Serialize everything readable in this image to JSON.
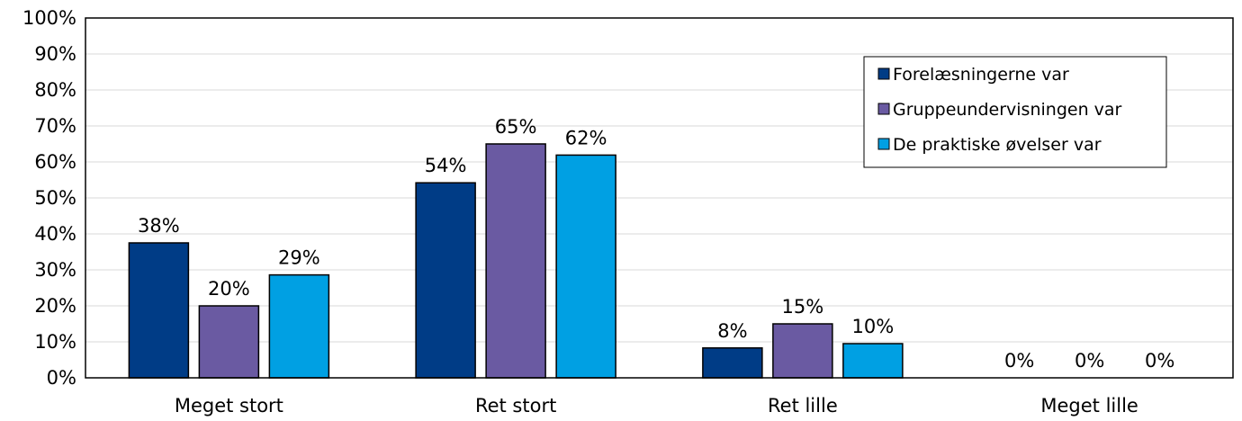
{
  "chart_data": {
    "type": "bar",
    "categories": [
      "Meget stort",
      "Ret stort",
      "Ret lille",
      "Meget lille"
    ],
    "series": [
      {
        "name": "Forelæsningerne var",
        "color": "#003c86",
        "values": [
          37.5,
          54.2,
          8.3,
          0
        ],
        "labels": [
          "38%",
          "54%",
          "8%",
          "0%"
        ]
      },
      {
        "name": "Gruppeundervisningen var",
        "color": "#6a5aa2",
        "values": [
          20,
          65,
          15,
          0
        ],
        "labels": [
          "20%",
          "65%",
          "15%",
          "0%"
        ]
      },
      {
        "name": "De praktiske øvelser var",
        "color": "#00a0e3",
        "values": [
          28.6,
          61.9,
          9.5,
          0
        ],
        "labels": [
          "29%",
          "62%",
          "10%",
          "0%"
        ]
      }
    ],
    "ylim": [
      0,
      100
    ],
    "yticks": [
      "0%",
      "10%",
      "20%",
      "30%",
      "40%",
      "50%",
      "60%",
      "70%",
      "80%",
      "90%",
      "100%"
    ],
    "grid": true,
    "legend_position": "top-right"
  }
}
